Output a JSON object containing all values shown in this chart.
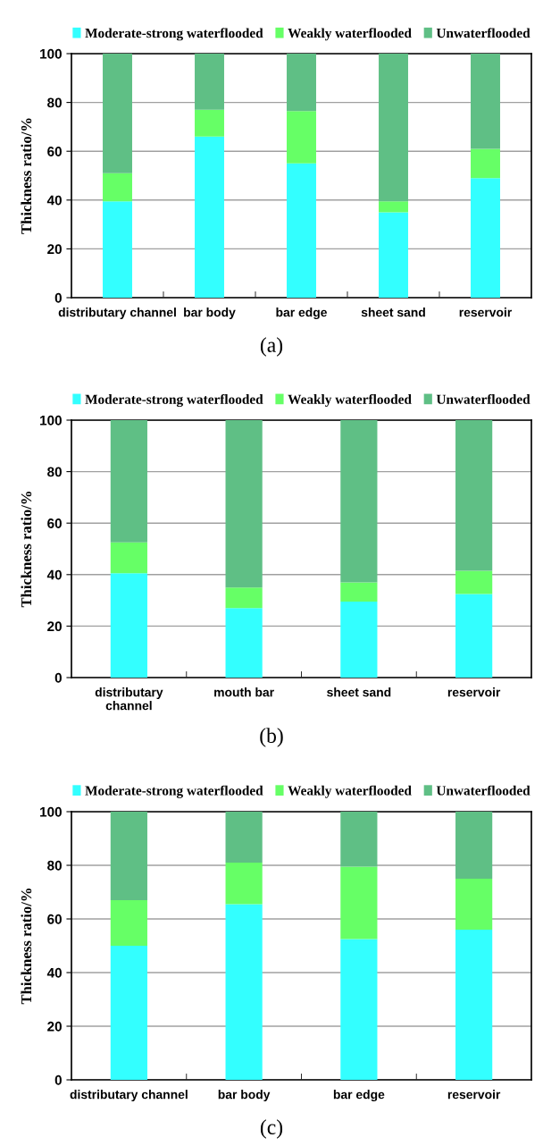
{
  "chart_data": [
    {
      "type": "bar",
      "stacked": true,
      "categories": [
        "distributary channel",
        "bar body",
        "bar edge",
        "sheet sand",
        "reservoir"
      ],
      "ylabel": "Thickness ratio/%",
      "ylim": [
        0,
        100
      ],
      "yticks": [
        0,
        20,
        40,
        60,
        80,
        100
      ],
      "grid": "y",
      "legend": "top",
      "annotations": [
        "(a)"
      ],
      "series": [
        {
          "name": "Moderate-strong waterflooded",
          "color": "#33ffff",
          "values": [
            39.5,
            66,
            55,
            35,
            49
          ]
        },
        {
          "name": "Weakly waterflooded",
          "color": "#66ff66",
          "values": [
            11.5,
            11,
            21.5,
            4.5,
            12
          ]
        },
        {
          "name": "Unwaterflooded",
          "color": "#5fbf85",
          "values": [
            49,
            23,
            23.5,
            60.5,
            39
          ]
        }
      ]
    },
    {
      "type": "bar",
      "stacked": true,
      "categories": [
        "distributary\nchannel",
        "mouth bar",
        "sheet sand",
        "reservoir"
      ],
      "ylabel": "Thickness ratio/%",
      "ylim": [
        0,
        100
      ],
      "yticks": [
        0,
        20,
        40,
        60,
        80,
        100
      ],
      "grid": "y",
      "legend": "top",
      "annotations": [
        "(b)"
      ],
      "series": [
        {
          "name": "Moderate-strong waterflooded",
          "color": "#33ffff",
          "values": [
            40.5,
            27,
            29.5,
            32.5
          ]
        },
        {
          "name": "Weakly waterflooded",
          "color": "#66ff66",
          "values": [
            12,
            8,
            7.5,
            9
          ]
        },
        {
          "name": "Unwaterflooded",
          "color": "#5fbf85",
          "values": [
            47.5,
            65,
            63,
            58.5
          ]
        }
      ]
    },
    {
      "type": "bar",
      "stacked": true,
      "categories": [
        "distributary channel",
        "bar body",
        "bar edge",
        "reservoir"
      ],
      "ylabel": "Thickness ratio/%",
      "ylim": [
        0,
        100
      ],
      "yticks": [
        0,
        20,
        40,
        60,
        80,
        100
      ],
      "grid": "y",
      "legend": "top",
      "annotations": [
        "(c)"
      ],
      "series": [
        {
          "name": "Moderate-strong waterflooded",
          "color": "#33ffff",
          "values": [
            50,
            65.5,
            52.5,
            56
          ]
        },
        {
          "name": "Weakly waterflooded",
          "color": "#66ff66",
          "values": [
            17,
            15.5,
            27,
            19
          ]
        },
        {
          "name": "Unwaterflooded",
          "color": "#5fbf85",
          "values": [
            33,
            19,
            20.5,
            25
          ]
        }
      ]
    }
  ]
}
